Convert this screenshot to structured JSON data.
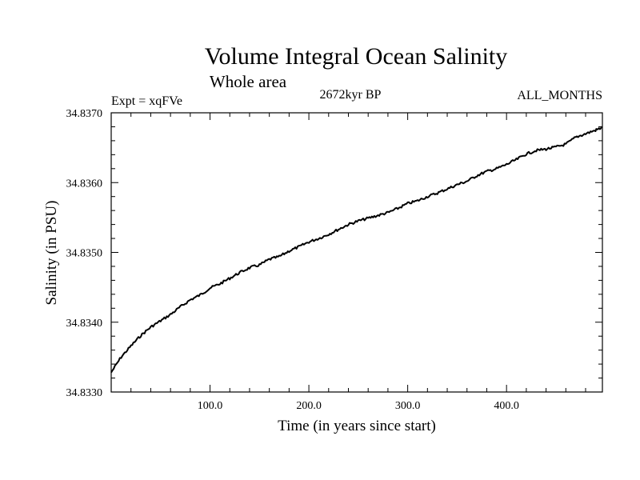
{
  "chart_data": {
    "type": "line",
    "title": "Volume Integral Ocean Salinity",
    "subtitle": "Whole area",
    "left_label": "Expt = xqFVe",
    "center_label": "2672kyr BP",
    "right_label": "ALL_MONTHS",
    "xlabel": "Time (in years since start)",
    "ylabel": "Salinity (in PSU)",
    "xlim": [
      0,
      497
    ],
    "ylim": [
      34.833,
      34.837
    ],
    "x_ticks": [
      {
        "value": 100,
        "label": "100.0"
      },
      {
        "value": 200,
        "label": "200.0"
      },
      {
        "value": 300,
        "label": "300.0"
      },
      {
        "value": 400,
        "label": "400.0"
      }
    ],
    "y_ticks": [
      {
        "value": 34.833,
        "label": "34.8330"
      },
      {
        "value": 34.834,
        "label": "34.8340"
      },
      {
        "value": 34.835,
        "label": "34.8350"
      },
      {
        "value": 34.836,
        "label": "34.8360"
      },
      {
        "value": 34.837,
        "label": "34.8370"
      }
    ],
    "series": [
      {
        "name": "Salinity",
        "color": "#000000",
        "x": [
          0,
          10,
          20,
          30,
          40,
          50,
          60,
          70,
          80,
          90,
          100,
          110,
          120,
          130,
          140,
          150,
          160,
          170,
          180,
          190,
          200,
          210,
          220,
          230,
          240,
          250,
          260,
          270,
          280,
          290,
          300,
          310,
          320,
          330,
          340,
          350,
          360,
          370,
          380,
          390,
          400,
          410,
          420,
          430,
          440,
          450,
          460,
          470,
          480,
          490,
          497
        ],
        "y": [
          34.83328,
          34.8335,
          34.83366,
          34.83381,
          34.83393,
          34.83402,
          34.83411,
          34.83422,
          34.83432,
          34.83439,
          34.83449,
          34.83455,
          34.83463,
          34.83471,
          34.83478,
          34.83482,
          34.8349,
          34.83494,
          34.83502,
          34.83508,
          34.83515,
          34.8352,
          34.83526,
          34.83533,
          34.8354,
          34.83545,
          34.83549,
          34.83553,
          34.83557,
          34.83563,
          34.8357,
          34.83574,
          34.8358,
          34.83585,
          34.83591,
          34.83597,
          34.83602,
          34.8361,
          34.83616,
          34.8362,
          34.83626,
          34.83633,
          34.83641,
          34.83646,
          34.83648,
          34.83651,
          34.83655,
          34.83665,
          34.8367,
          34.83675,
          34.83679
        ]
      }
    ]
  }
}
